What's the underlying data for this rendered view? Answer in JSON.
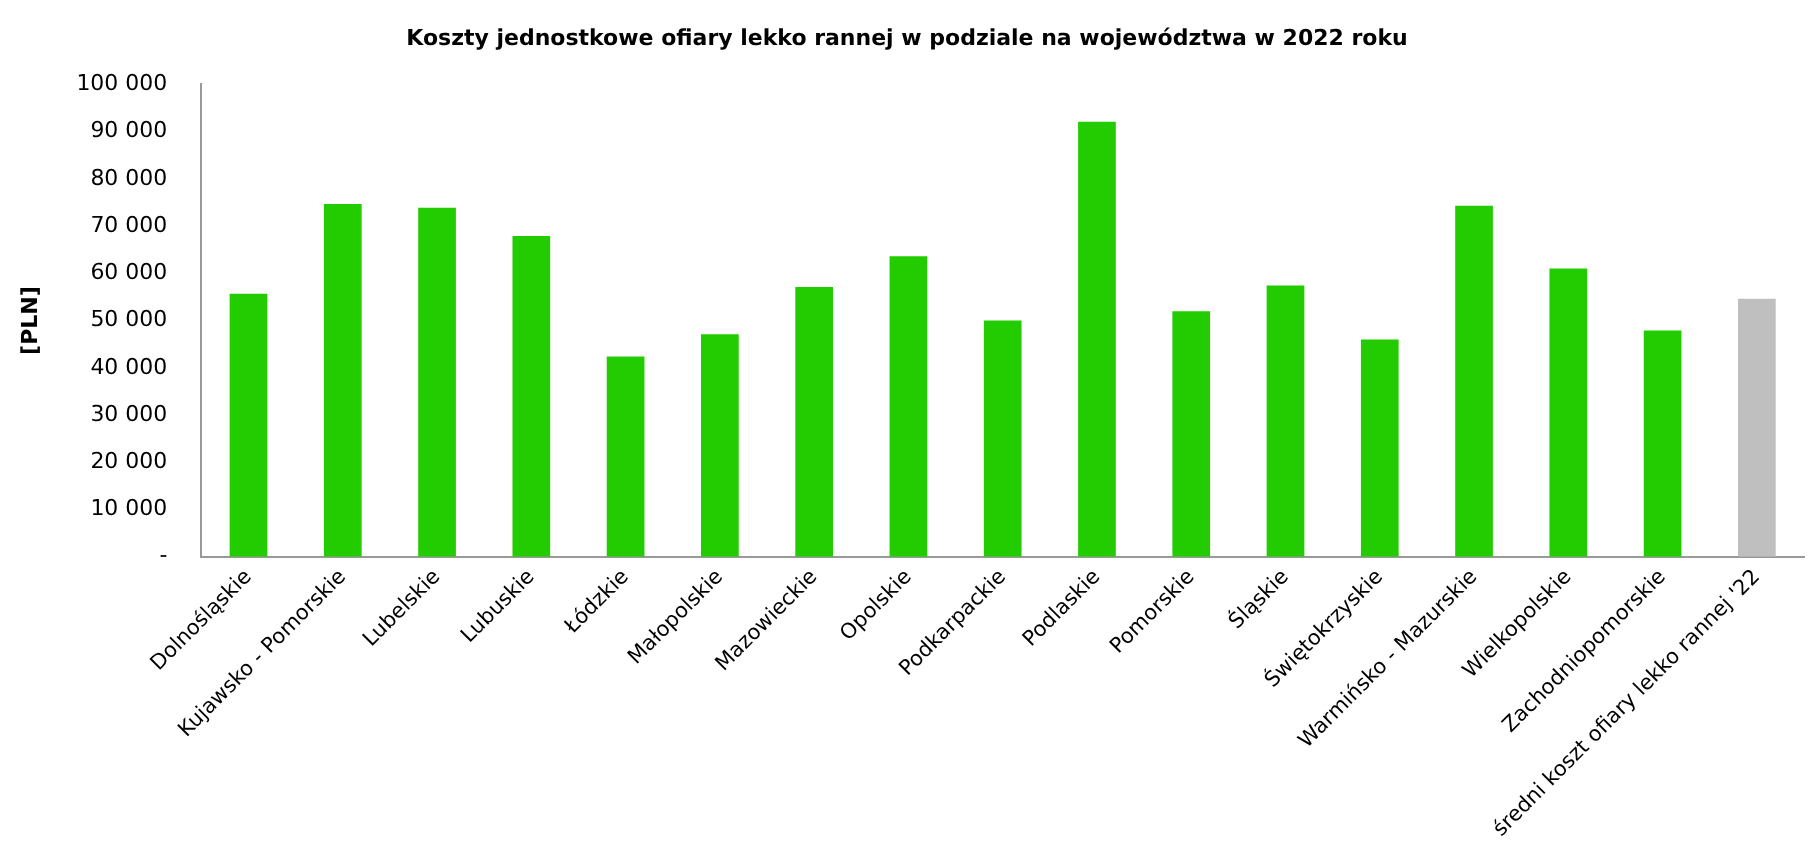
{
  "chart_data": {
    "type": "bar",
    "title": "Koszty jednostkowe ofiary lekko rannej w podziale na województwa w 2022 roku",
    "ylabel": "[PLN]",
    "categories": [
      "Dolnośląskie",
      "Kujawsko - Pomorskie",
      "Lubelskie",
      "Lubuskie",
      "Łódzkie",
      "Małopolskie",
      "Mazowieckie",
      "Opolskie",
      "Podkarpackie",
      "Podlaskie",
      "Pomorskie",
      "Śląskie",
      "Świętokrzyskie",
      "Warmińsko - Mazurskie",
      "Wielkopolskie",
      "Zachodniopomorskie",
      "średni koszt ofiary lekko rannej '22"
    ],
    "values": [
      55700,
      74700,
      73900,
      67900,
      42400,
      47100,
      57100,
      63600,
      50000,
      92100,
      52000,
      57400,
      46000,
      74300,
      61000,
      47900,
      54600
    ],
    "colors": [
      "#22cc00",
      "#22cc00",
      "#22cc00",
      "#22cc00",
      "#22cc00",
      "#22cc00",
      "#22cc00",
      "#22cc00",
      "#22cc00",
      "#22cc00",
      "#22cc00",
      "#22cc00",
      "#22cc00",
      "#22cc00",
      "#22cc00",
      "#22cc00",
      "#bfbfbf"
    ],
    "ylim": [
      0,
      100000
    ],
    "yticks": [
      {
        "value": 0,
        "label": "-"
      },
      {
        "value": 10000,
        "label": "10 000"
      },
      {
        "value": 20000,
        "label": "20 000"
      },
      {
        "value": 30000,
        "label": "30 000"
      },
      {
        "value": 40000,
        "label": "40 000"
      },
      {
        "value": 50000,
        "label": "50 000"
      },
      {
        "value": 60000,
        "label": "60 000"
      },
      {
        "value": 70000,
        "label": "70 000"
      },
      {
        "value": 80000,
        "label": "80 000"
      },
      {
        "value": 90000,
        "label": "90 000"
      },
      {
        "value": 100000,
        "label": "100 000"
      }
    ],
    "grid": false,
    "legend": false
  }
}
